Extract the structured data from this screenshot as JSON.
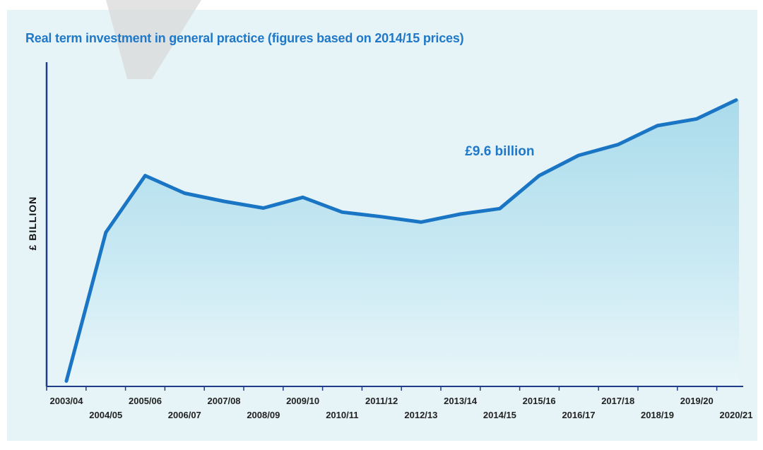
{
  "chart_data": {
    "type": "area",
    "title": "Real term investment in general practice (figures based on 2014/15 prices)",
    "ylabel": "£ BILLION",
    "xlabel": "",
    "categories": [
      "2003/04",
      "2004/05",
      "2005/06",
      "2006/07",
      "2007/08",
      "2008/09",
      "2009/10",
      "2010/11",
      "2011/12",
      "2012/13",
      "2013/14",
      "2014/15",
      "2015/16",
      "2016/17",
      "2017/18",
      "2018/19",
      "2019/20",
      "2020/21"
    ],
    "series": [
      {
        "values": [
          1.5,
          7.0,
          9.1,
          8.45,
          8.15,
          7.9,
          8.3,
          7.75,
          7.58,
          7.38,
          7.68,
          7.88,
          9.1,
          9.85,
          10.25,
          10.95,
          11.2,
          11.9
        ]
      }
    ],
    "ylim": [
      1.3,
      13.3
    ],
    "annotations": [
      {
        "text": "£9.6 billion",
        "x": "2014/15",
        "y": 10.0
      }
    ],
    "grid": false,
    "legend": "none",
    "colors": {
      "line": "#1a75c4",
      "fill_top": "#b6e0ee",
      "fill_bottom": "#eaf6f9",
      "axis": "#1f3c88",
      "title": "#1f78c8"
    }
  }
}
